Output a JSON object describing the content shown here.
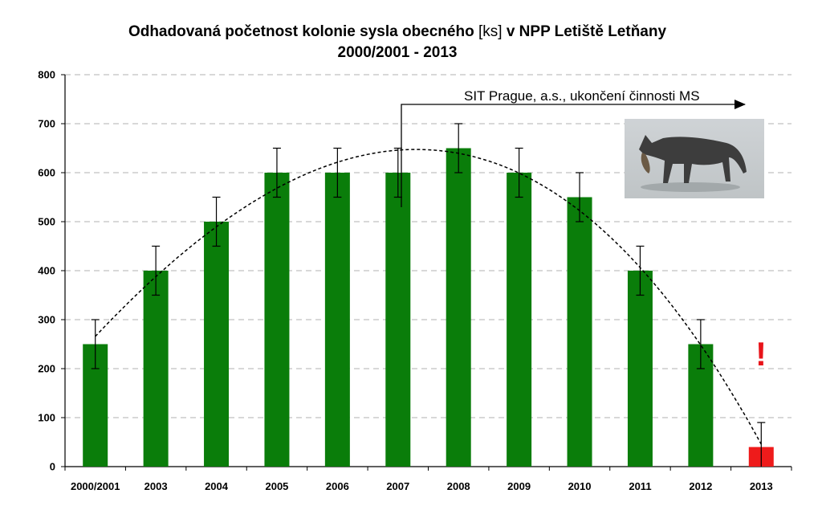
{
  "title": {
    "prefix": "Odhadovaná početnost kolonie sysla obecného",
    "unit": "[ks]",
    "suffix": "v NPP Letiště Letňany",
    "line2": "2000/2001 - 2013"
  },
  "colors": {
    "bar": "#0a7d0a",
    "highlight_bar": "#ee1b1b",
    "trend": "#000000",
    "grid": "#b0b0b0"
  },
  "annotations": {
    "arrow_label": "SIT Prague, a.s., ukončení činnosti MS",
    "warning_mark": "!",
    "photo_icon": "cat-with-prey-icon"
  },
  "chart_data": {
    "type": "bar",
    "title": "Odhadovaná početnost kolonie sysla obecného [ks] v NPP Letiště Letňany 2000/2001 - 2013",
    "categories": [
      "2000/2001",
      "2003",
      "2004",
      "2005",
      "2006",
      "2007",
      "2008",
      "2009",
      "2010",
      "2011",
      "2012",
      "2013"
    ],
    "values": [
      250,
      400,
      500,
      600,
      600,
      600,
      650,
      600,
      550,
      400,
      250,
      40
    ],
    "error_plus_minus": [
      50,
      50,
      50,
      50,
      50,
      50,
      50,
      50,
      50,
      50,
      50,
      50
    ],
    "highlight_index": 11,
    "trendline": "polynomial (dashed)",
    "xlabel": "",
    "ylabel": "",
    "ylim": [
      0,
      800
    ],
    "yticks": [
      0,
      100,
      200,
      300,
      400,
      500,
      600,
      700,
      800
    ],
    "grid": true,
    "legend": "none"
  }
}
